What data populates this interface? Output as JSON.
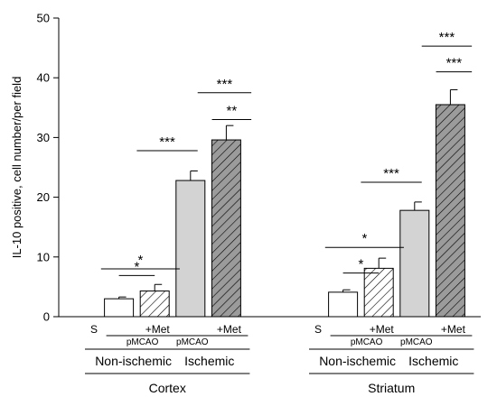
{
  "chart_data": {
    "type": "bar",
    "ylabel": "IL-10 positive, cell number/per field",
    "ylim": [
      0,
      50
    ],
    "yticks": [
      0,
      10,
      20,
      30,
      40,
      50
    ],
    "bars": [
      {
        "region": "Cortex",
        "group": "S",
        "value": 0,
        "error": 0,
        "fill": "white"
      },
      {
        "region": "Cortex",
        "group": "Non-ischemic pMCAO",
        "value": 3.0,
        "error": 0.3,
        "fill": "white"
      },
      {
        "region": "Cortex",
        "group": "Non-ischemic pMCAO +Met",
        "value": 4.3,
        "error": 1.1,
        "fill": "hatch-white"
      },
      {
        "region": "Cortex",
        "group": "Ischemic pMCAO",
        "value": 22.8,
        "error": 1.6,
        "fill": "lightgray"
      },
      {
        "region": "Cortex",
        "group": "Ischemic pMCAO +Met",
        "value": 29.6,
        "error": 2.4,
        "fill": "hatch-gray"
      },
      {
        "region": "Striatum",
        "group": "S",
        "value": 0,
        "error": 0,
        "fill": "white"
      },
      {
        "region": "Striatum",
        "group": "Non-ischemic pMCAO",
        "value": 4.1,
        "error": 0.4,
        "fill": "white"
      },
      {
        "region": "Striatum",
        "group": "Non-ischemic pMCAO +Met",
        "value": 8.1,
        "error": 1.7,
        "fill": "hatch-white"
      },
      {
        "region": "Striatum",
        "group": "Ischemic pMCAO",
        "value": 17.8,
        "error": 1.4,
        "fill": "lightgray"
      },
      {
        "region": "Striatum",
        "group": "Ischemic pMCAO +Met",
        "value": 35.5,
        "error": 2.5,
        "fill": "hatch-gray"
      }
    ],
    "significance": [
      {
        "from": 1,
        "to": 2,
        "y": 6.9,
        "label": "*"
      },
      {
        "from": 0.5,
        "to": 2.7,
        "y": 8.0,
        "label": "*"
      },
      {
        "from": 1.5,
        "to": 3.2,
        "y": 27.8,
        "label": "***"
      },
      {
        "from": 3.2,
        "to": 4.7,
        "y": 37.5,
        "label": "***"
      },
      {
        "from": 3.6,
        "to": 4.7,
        "y": 33.0,
        "label": "**"
      },
      {
        "from": 6,
        "to": 7,
        "y": 7.3,
        "label": "*"
      },
      {
        "from": 5.5,
        "to": 7.7,
        "y": 11.6,
        "label": "*"
      },
      {
        "from": 6.5,
        "to": 8.2,
        "y": 22.5,
        "label": "***"
      },
      {
        "from": 8.2,
        "to": 9.6,
        "y": 45.3,
        "label": "***"
      },
      {
        "from": 8.6,
        "to": 9.6,
        "y": 41.0,
        "label": "***"
      }
    ],
    "group_labels": {
      "s": "S",
      "met": "+Met",
      "pmcao": "pMCAO",
      "nonischemic": "Non-ischemic",
      "ischemic": "Ischemic"
    },
    "regions": [
      "Cortex",
      "Striatum"
    ]
  }
}
